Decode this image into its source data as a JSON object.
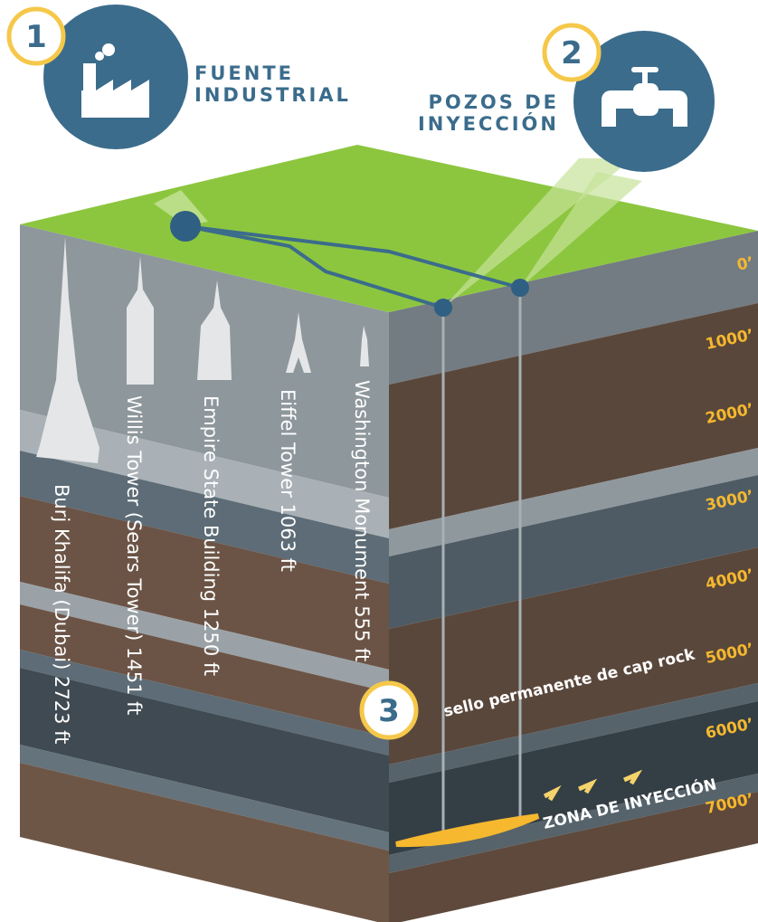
{
  "badges": [
    "1",
    "2",
    "3"
  ],
  "source": {
    "lines": [
      "FUENTE",
      "INDUSTRIAL"
    ]
  },
  "wells": {
    "lines": [
      "POZOS DE",
      "INYECCIÓN"
    ]
  },
  "depths": [
    "0’",
    "1000’",
    "2000’",
    "3000’",
    "4000’",
    "5000’",
    "6000’",
    "7000’"
  ],
  "buildings": [
    "Washington Monument 555 ft",
    "Eiffel Tower 1063 ft",
    "Empire State Building 1250 ft",
    "Willis Tower (Sears Tower) 1451 ft",
    "Burj Khalifa (Dubai) 2723 ft"
  ],
  "cap_rock": "sello permanente de cap rock",
  "zone": "ZONA DE INYECCIÓN"
}
